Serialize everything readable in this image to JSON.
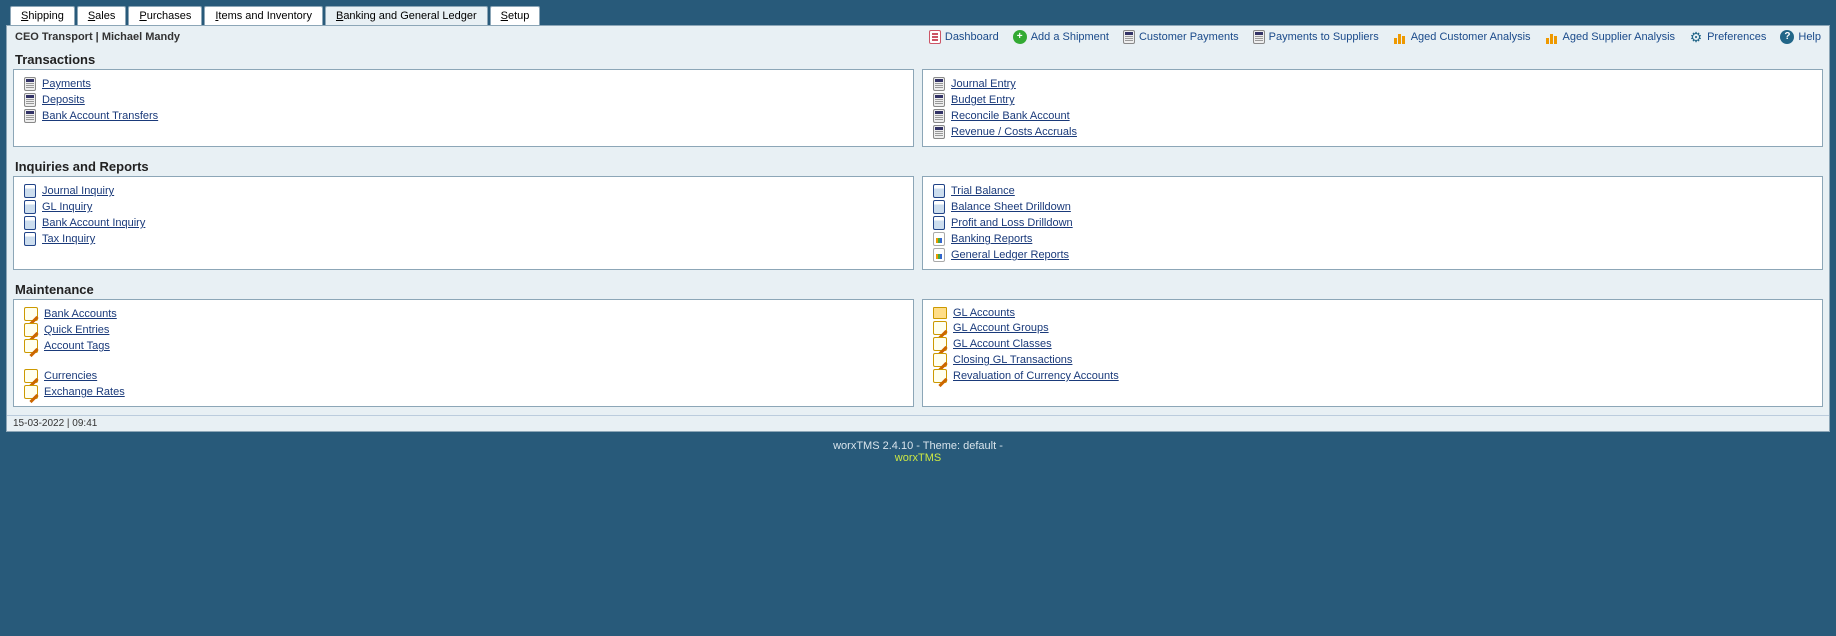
{
  "tabs": [
    {
      "label": "Shipping",
      "accel": "S"
    },
    {
      "label": "Sales",
      "accel": "S"
    },
    {
      "label": "Purchases",
      "accel": "P"
    },
    {
      "label": "Items and Inventory",
      "accel": "I"
    },
    {
      "label": "Banking and General Ledger",
      "accel": "B",
      "active": true
    },
    {
      "label": "Setup",
      "accel": "S"
    }
  ],
  "company_user": "CEO Transport | Michael Mandy",
  "toplinks": [
    {
      "id": "dashboard",
      "label": "Dashboard",
      "icon": "doc"
    },
    {
      "id": "add-shipment",
      "label": "Add a Shipment",
      "icon": "plus"
    },
    {
      "id": "customer-payments",
      "label": "Customer Payments",
      "icon": "calc"
    },
    {
      "id": "payments-suppliers",
      "label": "Payments to Suppliers",
      "icon": "calc"
    },
    {
      "id": "aged-customer",
      "label": "Aged Customer Analysis",
      "icon": "bar"
    },
    {
      "id": "aged-supplier",
      "label": "Aged Supplier Analysis",
      "icon": "bar"
    },
    {
      "id": "preferences",
      "label": "Preferences",
      "icon": "gear"
    },
    {
      "id": "help",
      "label": "Help",
      "icon": "help"
    }
  ],
  "sections": [
    {
      "title": "Transactions",
      "left": [
        {
          "label": "Payments",
          "icon": "calc"
        },
        {
          "label": "Deposits",
          "icon": "calc"
        },
        {
          "label": "Bank Account Transfers",
          "icon": "calc"
        }
      ],
      "right": [
        {
          "label": "Journal Entry",
          "icon": "calc"
        },
        {
          "label": "Budget Entry",
          "icon": "calc"
        },
        {
          "label": "Reconcile Bank Account",
          "icon": "calc"
        },
        {
          "label": "Revenue / Costs Accruals",
          "icon": "calc"
        }
      ]
    },
    {
      "title": "Inquiries and Reports",
      "left": [
        {
          "label": "Journal Inquiry",
          "icon": "book"
        },
        {
          "label": "GL Inquiry",
          "icon": "book"
        },
        {
          "label": "Bank Account Inquiry",
          "icon": "book"
        },
        {
          "label": "Tax Inquiry",
          "icon": "book"
        }
      ],
      "right": [
        {
          "label": "Trial Balance",
          "icon": "book"
        },
        {
          "label": "Balance Sheet Drilldown",
          "icon": "book"
        },
        {
          "label": "Profit and Loss Drilldown",
          "icon": "book"
        },
        {
          "label": "Banking Reports",
          "icon": "rep"
        },
        {
          "label": "General Ledger Reports",
          "icon": "rep"
        }
      ]
    },
    {
      "title": "Maintenance",
      "left": [
        {
          "label": "Bank Accounts",
          "icon": "edit"
        },
        {
          "label": "Quick Entries",
          "icon": "edit"
        },
        {
          "label": "Account Tags",
          "icon": "edit"
        },
        {
          "spacer": true
        },
        {
          "label": "Currencies",
          "icon": "edit"
        },
        {
          "label": "Exchange Rates",
          "icon": "edit"
        }
      ],
      "right": [
        {
          "label": "GL Accounts",
          "icon": "folder"
        },
        {
          "label": "GL Account Groups",
          "icon": "edit"
        },
        {
          "label": "GL Account Classes",
          "icon": "edit"
        },
        {
          "label": "Closing GL Transactions",
          "icon": "edit"
        },
        {
          "label": "Revaluation of Currency Accounts",
          "icon": "edit"
        }
      ]
    }
  ],
  "status": "15-03-2022 | 09:41",
  "footer_line": "worxTMS 2.4.10 - Theme: default -",
  "footer_link": "worxTMS"
}
